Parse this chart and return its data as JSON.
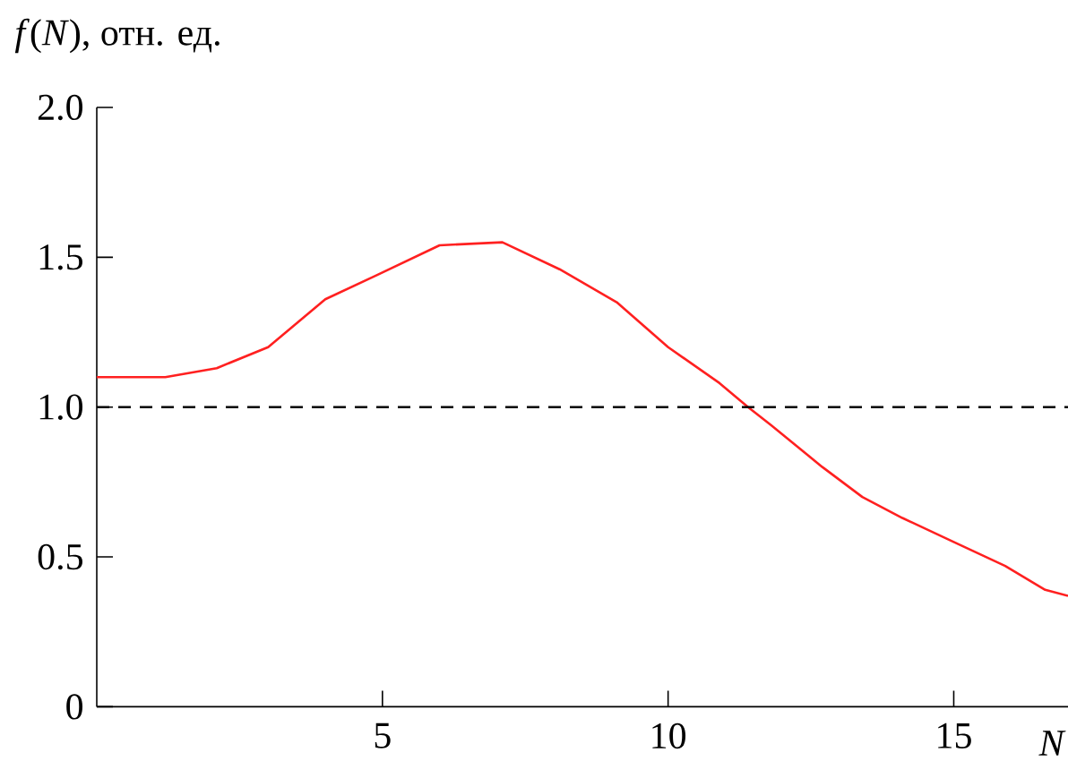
{
  "chart_data": {
    "type": "line",
    "xlabel": "N",
    "ylabel": "*f*(*N*), отн. ед.",
    "x": [
      0,
      1.2,
      2.1,
      3.0,
      4.0,
      4.9,
      6.0,
      7.1,
      8.1,
      9.1,
      10.0,
      10.9,
      11.4,
      11.8,
      12.7,
      13.4,
      14.1,
      15.0,
      15.9,
      16.6,
      17.0
    ],
    "series": [
      {
        "color": "#ff2020",
        "values": [
          1.1,
          1.1,
          1.13,
          1.2,
          1.36,
          1.44,
          1.54,
          1.55,
          1.46,
          1.35,
          1.2,
          1.08,
          1.0,
          0.94,
          0.8,
          0.7,
          0.63,
          0.55,
          0.47,
          0.39,
          0.37
        ]
      }
    ],
    "xlim": [
      0,
      17
    ],
    "ylim": [
      0,
      2.0
    ],
    "xticks": [
      5,
      10,
      15
    ],
    "yticks": [
      {
        "value": 0,
        "label": "0"
      },
      0.5,
      {
        "value": 1.0,
        "label": "1.0"
      },
      1.5,
      {
        "value": 2.0,
        "label": "2.0"
      }
    ],
    "ref_lines": [
      {
        "axis": "y",
        "value": 1.0,
        "color": "#000000",
        "line_style": "dashed"
      }
    ],
    "marker": "none",
    "line_style": "solid"
  }
}
